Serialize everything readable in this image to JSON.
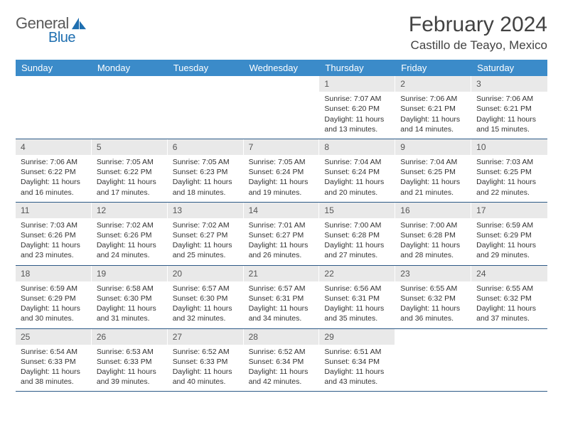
{
  "logo": {
    "word1": "General",
    "word2": "Blue"
  },
  "title": "February 2024",
  "location": "Castillo de Teayo, Mexico",
  "colors": {
    "header_bg": "#3b8bc9",
    "header_text": "#ffffff",
    "daynum_bg": "#e9e9e9",
    "week_border": "#2d5a87",
    "logo_text": "#5a5a5a",
    "logo_blue": "#1f6fb0",
    "body_text": "#333333"
  },
  "day_names": [
    "Sunday",
    "Monday",
    "Tuesday",
    "Wednesday",
    "Thursday",
    "Friday",
    "Saturday"
  ],
  "weeks": [
    [
      null,
      null,
      null,
      null,
      {
        "n": "1",
        "sr": "7:07 AM",
        "ss": "6:20 PM",
        "dl": "11 hours and 13 minutes."
      },
      {
        "n": "2",
        "sr": "7:06 AM",
        "ss": "6:21 PM",
        "dl": "11 hours and 14 minutes."
      },
      {
        "n": "3",
        "sr": "7:06 AM",
        "ss": "6:21 PM",
        "dl": "11 hours and 15 minutes."
      }
    ],
    [
      {
        "n": "4",
        "sr": "7:06 AM",
        "ss": "6:22 PM",
        "dl": "11 hours and 16 minutes."
      },
      {
        "n": "5",
        "sr": "7:05 AM",
        "ss": "6:22 PM",
        "dl": "11 hours and 17 minutes."
      },
      {
        "n": "6",
        "sr": "7:05 AM",
        "ss": "6:23 PM",
        "dl": "11 hours and 18 minutes."
      },
      {
        "n": "7",
        "sr": "7:05 AM",
        "ss": "6:24 PM",
        "dl": "11 hours and 19 minutes."
      },
      {
        "n": "8",
        "sr": "7:04 AM",
        "ss": "6:24 PM",
        "dl": "11 hours and 20 minutes."
      },
      {
        "n": "9",
        "sr": "7:04 AM",
        "ss": "6:25 PM",
        "dl": "11 hours and 21 minutes."
      },
      {
        "n": "10",
        "sr": "7:03 AM",
        "ss": "6:25 PM",
        "dl": "11 hours and 22 minutes."
      }
    ],
    [
      {
        "n": "11",
        "sr": "7:03 AM",
        "ss": "6:26 PM",
        "dl": "11 hours and 23 minutes."
      },
      {
        "n": "12",
        "sr": "7:02 AM",
        "ss": "6:26 PM",
        "dl": "11 hours and 24 minutes."
      },
      {
        "n": "13",
        "sr": "7:02 AM",
        "ss": "6:27 PM",
        "dl": "11 hours and 25 minutes."
      },
      {
        "n": "14",
        "sr": "7:01 AM",
        "ss": "6:27 PM",
        "dl": "11 hours and 26 minutes."
      },
      {
        "n": "15",
        "sr": "7:00 AM",
        "ss": "6:28 PM",
        "dl": "11 hours and 27 minutes."
      },
      {
        "n": "16",
        "sr": "7:00 AM",
        "ss": "6:28 PM",
        "dl": "11 hours and 28 minutes."
      },
      {
        "n": "17",
        "sr": "6:59 AM",
        "ss": "6:29 PM",
        "dl": "11 hours and 29 minutes."
      }
    ],
    [
      {
        "n": "18",
        "sr": "6:59 AM",
        "ss": "6:29 PM",
        "dl": "11 hours and 30 minutes."
      },
      {
        "n": "19",
        "sr": "6:58 AM",
        "ss": "6:30 PM",
        "dl": "11 hours and 31 minutes."
      },
      {
        "n": "20",
        "sr": "6:57 AM",
        "ss": "6:30 PM",
        "dl": "11 hours and 32 minutes."
      },
      {
        "n": "21",
        "sr": "6:57 AM",
        "ss": "6:31 PM",
        "dl": "11 hours and 34 minutes."
      },
      {
        "n": "22",
        "sr": "6:56 AM",
        "ss": "6:31 PM",
        "dl": "11 hours and 35 minutes."
      },
      {
        "n": "23",
        "sr": "6:55 AM",
        "ss": "6:32 PM",
        "dl": "11 hours and 36 minutes."
      },
      {
        "n": "24",
        "sr": "6:55 AM",
        "ss": "6:32 PM",
        "dl": "11 hours and 37 minutes."
      }
    ],
    [
      {
        "n": "25",
        "sr": "6:54 AM",
        "ss": "6:33 PM",
        "dl": "11 hours and 38 minutes."
      },
      {
        "n": "26",
        "sr": "6:53 AM",
        "ss": "6:33 PM",
        "dl": "11 hours and 39 minutes."
      },
      {
        "n": "27",
        "sr": "6:52 AM",
        "ss": "6:33 PM",
        "dl": "11 hours and 40 minutes."
      },
      {
        "n": "28",
        "sr": "6:52 AM",
        "ss": "6:34 PM",
        "dl": "11 hours and 42 minutes."
      },
      {
        "n": "29",
        "sr": "6:51 AM",
        "ss": "6:34 PM",
        "dl": "11 hours and 43 minutes."
      },
      null,
      null
    ]
  ],
  "labels": {
    "sunrise": "Sunrise: ",
    "sunset": "Sunset: ",
    "daylight": "Daylight: "
  }
}
